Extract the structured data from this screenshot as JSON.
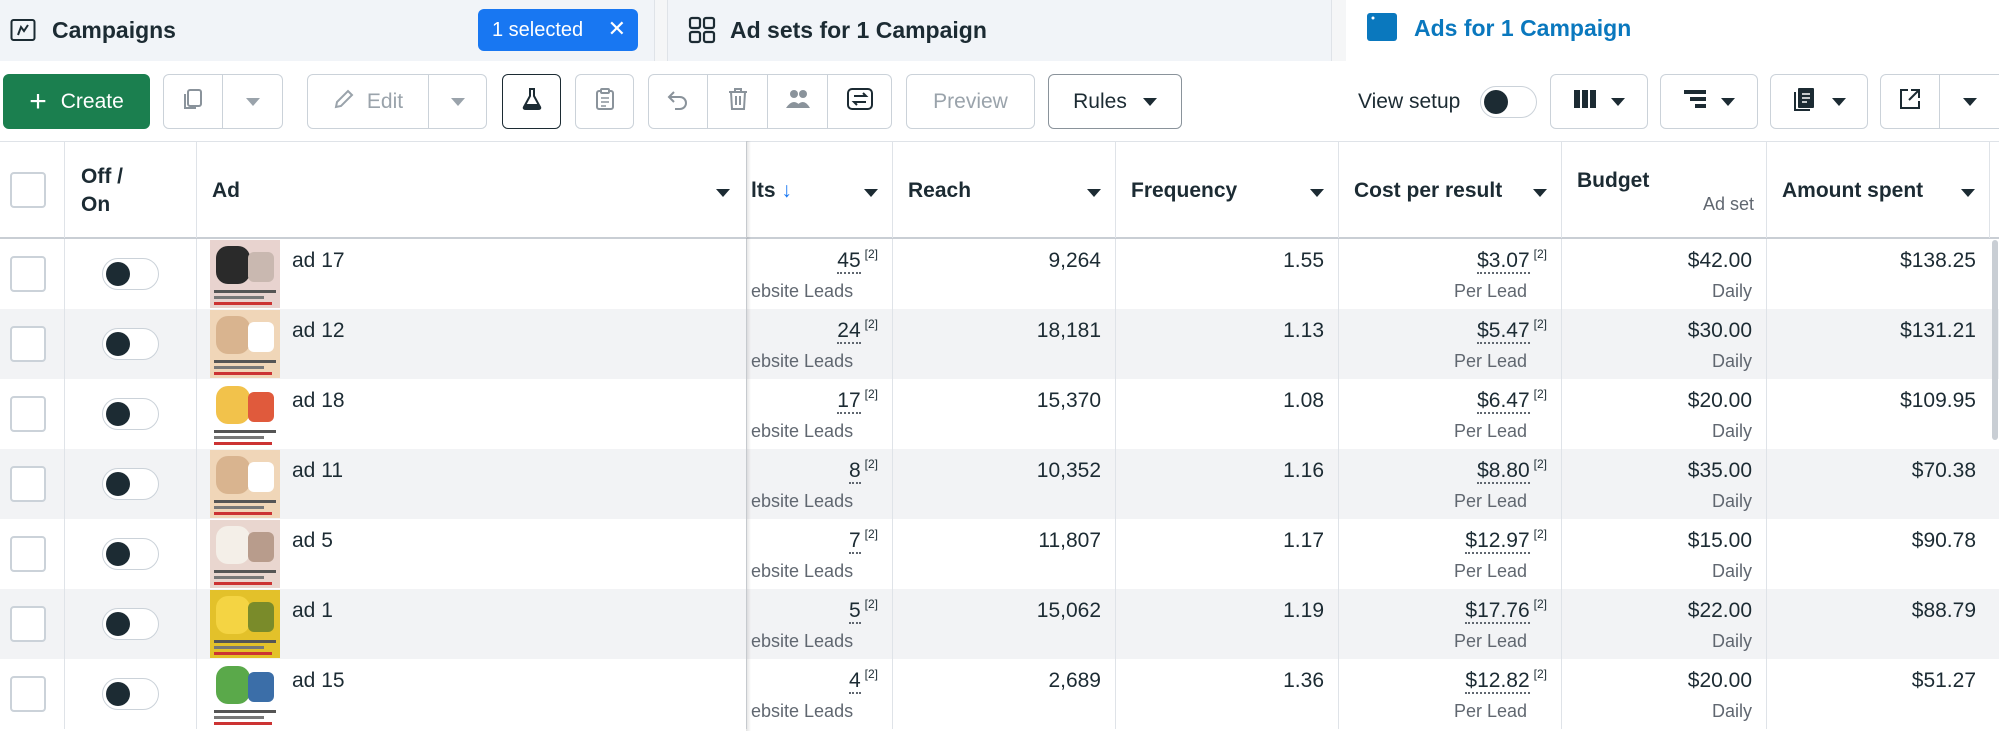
{
  "tabs": {
    "campaigns": {
      "label": "Campaigns",
      "selected_chip": "1 selected"
    },
    "adsets": {
      "label": "Ad sets for 1 Campaign"
    },
    "ads": {
      "label": "Ads for 1 Campaign"
    }
  },
  "toolbar": {
    "create_label": "Create",
    "edit_label": "Edit",
    "preview_label": "Preview",
    "rules_label": "Rules",
    "view_setup_label": "View setup",
    "view_setup_on": false
  },
  "table": {
    "headers": {
      "offon_line1": "Off /",
      "offon_line2": "On",
      "ad": "Ad",
      "results": "lts",
      "reach": "Reach",
      "frequency": "Frequency",
      "cost_per_result": "Cost per result",
      "budget": "Budget",
      "budget_sub": "Ad set",
      "amount_spent": "Amount spent"
    },
    "rows": [
      {
        "name": "ad 17",
        "results": "45",
        "results_note": "[2]",
        "results_type": "ebsite Leads",
        "reach": "9,264",
        "frequency": "1.55",
        "cost": "$3.07",
        "cost_note": "[2]",
        "cost_type": "Per Lead",
        "budget": "$42.00",
        "budget_type": "Daily",
        "spent": "$138.25",
        "on": false
      },
      {
        "name": "ad 12",
        "results": "24",
        "results_note": "[2]",
        "results_type": "ebsite Leads",
        "reach": "18,181",
        "frequency": "1.13",
        "cost": "$5.47",
        "cost_note": "[2]",
        "cost_type": "Per Lead",
        "budget": "$30.00",
        "budget_type": "Daily",
        "spent": "$131.21",
        "on": false
      },
      {
        "name": "ad 18",
        "results": "17",
        "results_note": "[2]",
        "results_type": "ebsite Leads",
        "reach": "15,370",
        "frequency": "1.08",
        "cost": "$6.47",
        "cost_note": "[2]",
        "cost_type": "Per Lead",
        "budget": "$20.00",
        "budget_type": "Daily",
        "spent": "$109.95",
        "on": false
      },
      {
        "name": "ad 11",
        "results": "8",
        "results_note": "[2]",
        "results_type": "ebsite Leads",
        "reach": "10,352",
        "frequency": "1.16",
        "cost": "$8.80",
        "cost_note": "[2]",
        "cost_type": "Per Lead",
        "budget": "$35.00",
        "budget_type": "Daily",
        "spent": "$70.38",
        "on": false
      },
      {
        "name": "ad 5",
        "results": "7",
        "results_note": "[2]",
        "results_type": "ebsite Leads",
        "reach": "11,807",
        "frequency": "1.17",
        "cost": "$12.97",
        "cost_note": "[2]",
        "cost_type": "Per Lead",
        "budget": "$15.00",
        "budget_type": "Daily",
        "spent": "$90.78",
        "on": false
      },
      {
        "name": "ad 1",
        "results": "5",
        "results_note": "[2]",
        "results_type": "ebsite Leads",
        "reach": "15,062",
        "frequency": "1.19",
        "cost": "$17.76",
        "cost_note": "[2]",
        "cost_type": "Per Lead",
        "budget": "$22.00",
        "budget_type": "Daily",
        "spent": "$88.79",
        "on": false
      },
      {
        "name": "ad 15",
        "results": "4",
        "results_note": "[2]",
        "results_type": "ebsite Leads",
        "reach": "2,689",
        "frequency": "1.36",
        "cost": "$12.82",
        "cost_note": "[2]",
        "cost_type": "Per Lead",
        "budget": "$20.00",
        "budget_type": "Daily",
        "spent": "$51.27",
        "on": false
      }
    ]
  },
  "colors": {
    "primary_green": "#1b7f4f",
    "selected_blue": "#1877f2",
    "active_tab_blue": "#0a78be",
    "toggle_knob": "#1c2b33"
  },
  "icons": {
    "campaigns_tab": "flag-folder-icon",
    "adsets_tab": "grid-icon",
    "ads_tab": "ad-window-icon",
    "duplicate": "duplicate-icon",
    "edit": "pencil-icon",
    "test": "flask-icon",
    "clipboard": "clipboard-icon",
    "undo": "undo-icon",
    "delete": "trash-icon",
    "audience": "people-icon",
    "swap": "swap-icon",
    "columns": "columns-icon",
    "breakdown": "breakdown-icon",
    "reports": "reports-icon",
    "export": "export-icon"
  }
}
